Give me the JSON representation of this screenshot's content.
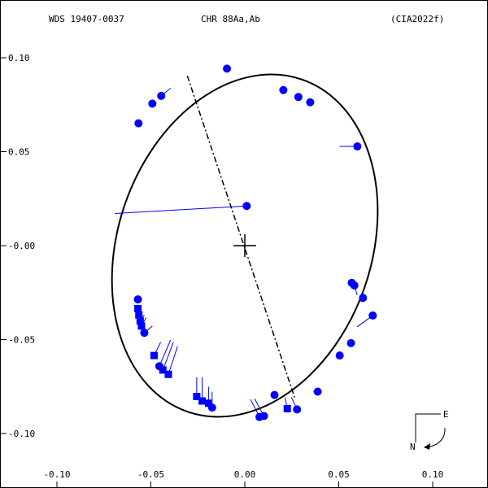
{
  "header": {
    "wds": "WDS 19407-0037",
    "discoverer": "CHR  88Aa,Ab",
    "reference": "(CIA2022f)"
  },
  "compass": {
    "east_label": "E",
    "north_label": "N"
  },
  "colors": {
    "frame": "#000000",
    "orbit": "#000000",
    "residual": "#0000ff",
    "marker": "#0000ff"
  },
  "chart_data": {
    "type": "scatter",
    "title": "",
    "xlabel": "",
    "ylabel": "",
    "xlim": [
      -0.13,
      0.13
    ],
    "ylim": [
      -0.13,
      0.13
    ],
    "x_ticks": [
      {
        "v": -0.1,
        "label": "-0.10"
      },
      {
        "v": -0.05,
        "label": "-0.05"
      },
      {
        "v": 0.0,
        "label": "0.00"
      },
      {
        "v": 0.05,
        "label": "0.05"
      },
      {
        "v": 0.1,
        "label": "0.10"
      }
    ],
    "y_ticks": [
      {
        "v": 0.1,
        "label": "0.10"
      },
      {
        "v": 0.05,
        "label": "0.05"
      },
      {
        "v": 0.0,
        "label": "-0.00"
      },
      {
        "v": -0.05,
        "label": "-0.05"
      },
      {
        "v": -0.1,
        "label": "-0.10"
      }
    ],
    "orbit_ellipse": {
      "center": [
        0.0,
        0.0
      ],
      "semi_major": 0.0935,
      "semi_minor": 0.0675,
      "major_axis_angle_deg": 109.0
    },
    "line_of_nodes": [
      [
        -0.0306,
        0.0904
      ],
      [
        0.0265,
        -0.0808
      ]
    ],
    "primary": [
      0.0,
      0.0
    ],
    "observations": [
      {
        "marker": "circle",
        "x": -0.0095,
        "y": 0.0942,
        "ox": -0.0095,
        "oy": 0.0942
      },
      {
        "marker": "circle",
        "x": 0.0205,
        "y": 0.0828,
        "ox": 0.0205,
        "oy": 0.0828
      },
      {
        "marker": "circle",
        "x": 0.0285,
        "y": 0.0791,
        "ox": 0.0285,
        "oy": 0.0791
      },
      {
        "marker": "circle",
        "x": 0.0348,
        "y": 0.0763,
        "ox": 0.0348,
        "oy": 0.0763
      },
      {
        "marker": "circle",
        "x": 0.0599,
        "y": 0.0528,
        "ox": 0.0505,
        "oy": 0.0528
      },
      {
        "marker": "circle",
        "x": -0.0445,
        "y": 0.0797,
        "ox": -0.0395,
        "oy": 0.0838
      },
      {
        "marker": "circle",
        "x": -0.0492,
        "y": 0.0756,
        "ox": -0.048,
        "oy": 0.0765
      },
      {
        "marker": "circle",
        "x": -0.0566,
        "y": 0.0651,
        "ox": -0.0566,
        "oy": 0.0651
      },
      {
        "marker": "circle",
        "x": 0.001,
        "y": 0.0211,
        "ox": -0.0692,
        "oy": 0.0171
      },
      {
        "marker": "circle",
        "x": 0.0569,
        "y": -0.0198,
        "ox": 0.0585,
        "oy": -0.0198
      },
      {
        "marker": "circle",
        "x": 0.0583,
        "y": -0.0212,
        "ox": 0.0598,
        "oy": -0.0262
      },
      {
        "marker": "circle",
        "x": 0.0629,
        "y": -0.0278,
        "ox": 0.0618,
        "oy": -0.0298
      },
      {
        "marker": "circle",
        "x": 0.0681,
        "y": -0.0372,
        "ox": 0.0598,
        "oy": -0.0432
      },
      {
        "marker": "circle",
        "x": 0.0565,
        "y": -0.0519,
        "ox": 0.0565,
        "oy": -0.0519
      },
      {
        "marker": "circle",
        "x": 0.0505,
        "y": -0.0585,
        "ox": 0.0505,
        "oy": -0.0585
      },
      {
        "marker": "circle",
        "x": 0.0388,
        "y": -0.0777,
        "ox": 0.0365,
        "oy": -0.0776
      },
      {
        "marker": "circle",
        "x": 0.0158,
        "y": -0.0795,
        "ox": 0.0155,
        "oy": -0.0795
      },
      {
        "marker": "circle",
        "x": 0.0078,
        "y": -0.0912,
        "ox": 0.003,
        "oy": -0.0818
      },
      {
        "marker": "circle",
        "x": 0.0102,
        "y": -0.0907,
        "ox": 0.0052,
        "oy": -0.0815
      },
      {
        "marker": "square",
        "x": 0.0226,
        "y": -0.0868,
        "ox": 0.0214,
        "oy": -0.0808
      },
      {
        "marker": "circle",
        "x": 0.0278,
        "y": -0.0872,
        "ox": 0.0248,
        "oy": -0.0807
      },
      {
        "marker": "circle",
        "x": -0.0174,
        "y": -0.0862,
        "ox": -0.0174,
        "oy": -0.0778
      },
      {
        "marker": "square",
        "x": -0.0193,
        "y": -0.0839,
        "ox": -0.0193,
        "oy": -0.0752
      },
      {
        "marker": "square",
        "x": -0.0227,
        "y": -0.0827,
        "ox": -0.0227,
        "oy": -0.0701
      },
      {
        "marker": "square",
        "x": -0.0256,
        "y": -0.0803,
        "ox": -0.0256,
        "oy": -0.0701
      },
      {
        "marker": "square",
        "x": -0.0407,
        "y": -0.0685,
        "ox": -0.0358,
        "oy": -0.0536
      },
      {
        "marker": "square",
        "x": -0.0436,
        "y": -0.0662,
        "ox": -0.038,
        "oy": -0.0513
      },
      {
        "marker": "circle",
        "x": -0.0455,
        "y": -0.0642,
        "ox": -0.0395,
        "oy": -0.0502
      },
      {
        "marker": "square",
        "x": -0.0483,
        "y": -0.0585,
        "ox": -0.0448,
        "oy": -0.0514
      },
      {
        "marker": "circle",
        "x": -0.0535,
        "y": -0.0464,
        "ox": -0.0492,
        "oy": -0.0428
      },
      {
        "marker": "square",
        "x": -0.055,
        "y": -0.0428,
        "ox": -0.0525,
        "oy": -0.0383
      },
      {
        "marker": "square",
        "x": -0.0557,
        "y": -0.0401,
        "ox": -0.0535,
        "oy": -0.0368
      },
      {
        "marker": "square",
        "x": -0.0564,
        "y": -0.0369,
        "ox": -0.0545,
        "oy": -0.0352
      },
      {
        "marker": "square",
        "x": -0.0569,
        "y": -0.0335,
        "ox": -0.0558,
        "oy": -0.0335
      },
      {
        "marker": "circle",
        "x": -0.0569,
        "y": -0.0286,
        "ox": -0.0569,
        "oy": -0.0286
      }
    ]
  }
}
